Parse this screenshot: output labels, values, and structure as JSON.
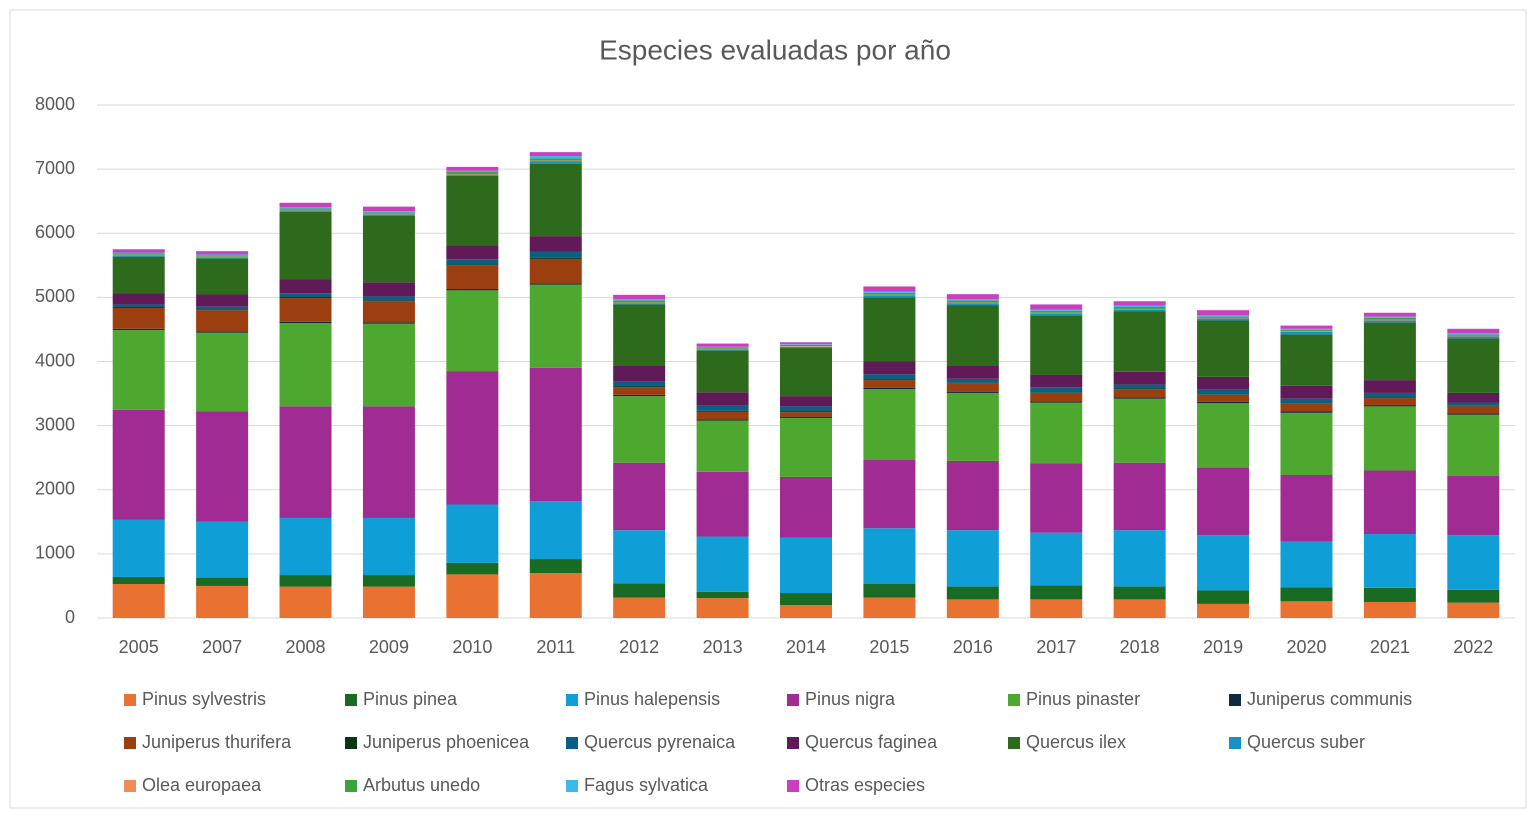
{
  "chart_data": {
    "type": "stacked_bar",
    "title": "Especies evaluadas por año",
    "categories": [
      "2005",
      "2007",
      "2008",
      "2009",
      "2010",
      "2011",
      "2012",
      "2013",
      "2014",
      "2015",
      "2016",
      "2017",
      "2018",
      "2019",
      "2020",
      "2021",
      "2022"
    ],
    "ylim": [
      0,
      8000
    ],
    "yticks": [
      0,
      1000,
      2000,
      3000,
      4000,
      5000,
      6000,
      7000,
      8000
    ],
    "grid": true,
    "legend": "bottom",
    "series": [
      {
        "name": "Pinus sylvestris",
        "color": "#e97132",
        "values": [
          530,
          500,
          490,
          490,
          680,
          700,
          320,
          310,
          200,
          320,
          290,
          290,
          290,
          220,
          260,
          250,
          240
        ]
      },
      {
        "name": "Pinus pinea",
        "color": "#196b24",
        "values": [
          110,
          130,
          180,
          180,
          180,
          220,
          220,
          100,
          190,
          210,
          200,
          220,
          200,
          210,
          220,
          220,
          200
        ]
      },
      {
        "name": "Pinus halepensis",
        "color": "#0f9ed5",
        "values": [
          890,
          870,
          890,
          890,
          910,
          900,
          830,
          860,
          860,
          870,
          880,
          820,
          880,
          860,
          710,
          840,
          850
        ]
      },
      {
        "name": "Pinus nigra",
        "color": "#a02b93",
        "values": [
          1715,
          1720,
          1740,
          1740,
          2080,
          2080,
          1050,
          1010,
          950,
          1070,
          1080,
          1080,
          1050,
          1060,
          1040,
          990,
          930
        ]
      },
      {
        "name": "Pinus pinaster",
        "color": "#4ea72e",
        "values": [
          1245,
          1230,
          1300,
          1290,
          1260,
          1300,
          1040,
          800,
          920,
          1100,
          1060,
          950,
          1000,
          1000,
          970,
          1000,
          950
        ]
      },
      {
        "name": "Juniperus communis",
        "color": "#0e2841",
        "values": [
          20,
          20,
          20,
          20,
          20,
          20,
          20,
          20,
          20,
          20,
          20,
          20,
          20,
          20,
          20,
          20,
          20
        ]
      },
      {
        "name": "Juniperus thurifera",
        "color": "#9c3f10",
        "values": [
          325,
          330,
          370,
          330,
          370,
          380,
          120,
          120,
          70,
          120,
          130,
          130,
          130,
          110,
          120,
          110,
          110
        ]
      },
      {
        "name": "Juniperus phoenicea",
        "color": "#0d3512",
        "values": [
          15,
          15,
          15,
          15,
          15,
          15,
          10,
          10,
          10,
          10,
          10,
          10,
          10,
          10,
          10,
          10,
          10
        ]
      },
      {
        "name": "Quercus pyrenaica",
        "color": "#0b5f80",
        "values": [
          40,
          40,
          60,
          60,
          80,
          100,
          80,
          80,
          80,
          80,
          60,
          80,
          60,
          80,
          70,
          70,
          50
        ]
      },
      {
        "name": "Quercus faginea",
        "color": "#601a58",
        "values": [
          170,
          190,
          220,
          220,
          220,
          240,
          240,
          210,
          160,
          200,
          200,
          190,
          200,
          190,
          200,
          200,
          150
        ]
      },
      {
        "name": "Quercus ilex",
        "color": "#2e6a1c",
        "values": [
          575,
          560,
          1050,
          1040,
          1080,
          1130,
          960,
          650,
          750,
          1000,
          950,
          930,
          940,
          880,
          800,
          900,
          850
        ]
      },
      {
        "name": "Quercus suber",
        "color": "#1891c6",
        "values": [
          20,
          20,
          20,
          20,
          20,
          40,
          20,
          20,
          20,
          30,
          30,
          30,
          30,
          30,
          40,
          30,
          30
        ]
      },
      {
        "name": "Olea europaea",
        "color": "#f08b57",
        "values": [
          10,
          10,
          10,
          10,
          10,
          10,
          10,
          10,
          10,
          10,
          10,
          10,
          10,
          10,
          10,
          10,
          10
        ]
      },
      {
        "name": "Arbutus unedo",
        "color": "#3aa63a",
        "values": [
          20,
          20,
          20,
          20,
          30,
          30,
          30,
          20,
          20,
          30,
          30,
          30,
          30,
          20,
          20,
          30,
          20
        ]
      },
      {
        "name": "Fagus sylvatica",
        "color": "#3cb8eb",
        "values": [
          15,
          15,
          20,
          20,
          20,
          40,
          20,
          10,
          10,
          20,
          20,
          20,
          20,
          20,
          20,
          20,
          20
        ]
      },
      {
        "name": "Otras especies",
        "color": "#c83fbf",
        "values": [
          50,
          50,
          70,
          70,
          60,
          60,
          70,
          50,
          30,
          80,
          80,
          80,
          70,
          80,
          50,
          60,
          70
        ]
      }
    ]
  }
}
